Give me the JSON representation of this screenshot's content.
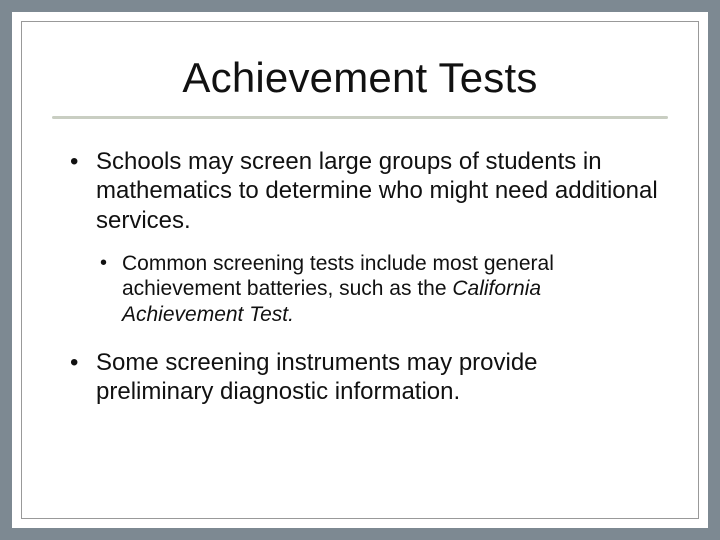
{
  "slide": {
    "background_color": "#7d8992",
    "card_color": "#ffffff",
    "inner_border_color": "#999999",
    "title": "Achievement Tests",
    "title_fontsize": 42,
    "title_color": "#111111",
    "underline_color": "#c9cec2",
    "bullets": [
      {
        "text": "Schools may screen large groups of students in mathematics to determine who might need additional services.",
        "sub": [
          {
            "text_before": "Common screening tests include most general achievement batteries, such as the ",
            "italic": "California Achievement Test.",
            "text_after": ""
          }
        ]
      },
      {
        "text": "Some screening instruments may provide preliminary diagnostic information.",
        "sub": []
      }
    ],
    "body_fontsize": 24,
    "sub_fontsize": 21,
    "text_color": "#111111"
  }
}
